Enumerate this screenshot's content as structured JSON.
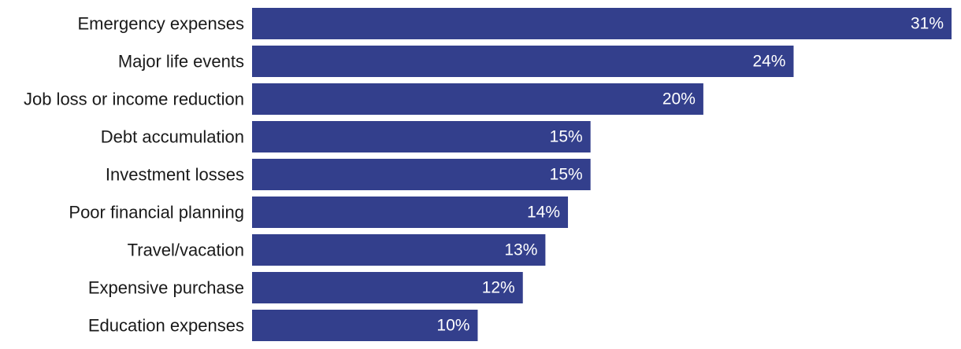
{
  "colors": {
    "bar": "#333f8c",
    "label_text": "#1a1a1a",
    "value_text": "#ffffff",
    "background": "#ffffff"
  },
  "chart_data": {
    "type": "bar",
    "orientation": "horizontal",
    "categories": [
      "Emergency expenses",
      "Major life events",
      "Job loss or income reduction",
      "Debt accumulation",
      "Investment losses",
      "Poor financial planning",
      "Travel/vacation",
      "Expensive purchase",
      "Education expenses"
    ],
    "values": [
      31,
      24,
      20,
      15,
      15,
      14,
      13,
      12,
      10
    ],
    "value_labels": [
      "31%",
      "24%",
      "20%",
      "15%",
      "15%",
      "14%",
      "13%",
      "12%",
      "10%"
    ],
    "unit": "%",
    "xlim": [
      0,
      31
    ],
    "grid": false,
    "legend": "none"
  }
}
